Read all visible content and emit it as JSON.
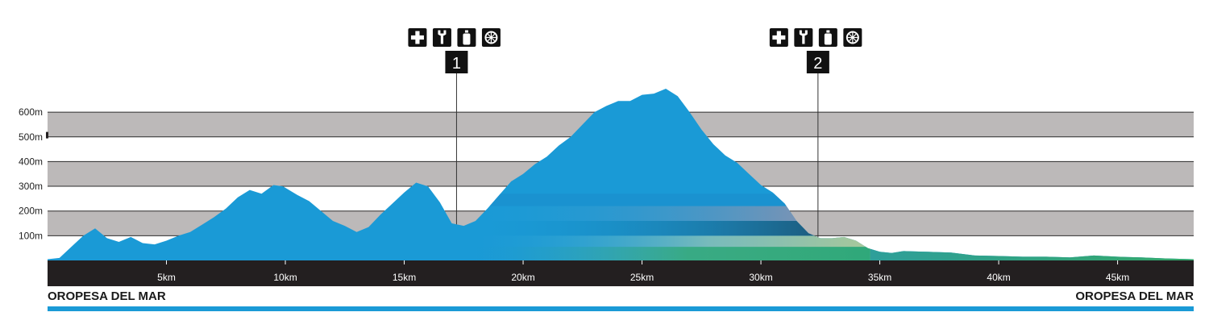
{
  "chart_data": {
    "type": "area",
    "title": "",
    "xlabel": "",
    "ylabel": "",
    "xlim": [
      0,
      48.2
    ],
    "ylim": [
      0,
      700
    ],
    "y_ticks": [
      "100m",
      "200m",
      "300m",
      "400m",
      "500m",
      "600m"
    ],
    "y_tick_values": [
      100,
      200,
      300,
      400,
      500,
      600
    ],
    "x_ticks": [
      "5km",
      "10km",
      "15km",
      "20km",
      "25km",
      "30km",
      "35km",
      "40km",
      "45km"
    ],
    "x_tick_values": [
      5,
      10,
      15,
      20,
      25,
      30,
      35,
      40,
      45
    ],
    "start_label": "OROPESA DEL MAR",
    "end_label": "OROPESA DEL MAR",
    "series": [
      {
        "x": [
          0,
          0.5,
          1.0,
          1.5,
          2.0,
          2.5,
          3.0,
          3.5,
          4.0,
          4.5,
          5.0,
          5.5,
          6.0,
          6.5,
          7.0,
          7.5,
          8.0,
          8.5,
          9.0,
          9.5,
          9.9,
          10.5,
          11.0,
          11.5,
          12.0,
          12.5,
          13.0,
          13.5,
          14.0,
          14.5,
          15.0,
          15.5,
          16.0,
          16.5,
          17.0,
          17.5,
          18.0,
          18.5,
          19.0,
          19.5,
          20.0,
          20.5,
          21.0,
          21.5,
          22.0,
          22.5,
          23.0,
          23.5,
          24.0,
          24.5,
          25.0,
          25.5,
          26.0,
          26.5,
          27.0,
          27.5,
          28.0,
          28.5,
          29.0,
          29.5,
          30.0,
          30.5,
          31.0,
          31.5,
          32.0,
          32.5,
          33.0,
          33.5,
          34.0,
          34.5,
          35.0,
          35.5,
          36.0,
          37.0,
          38.0,
          39.0,
          40.0,
          41.0,
          42.0,
          43.0,
          44.0,
          45.0,
          46.0,
          47.0,
          48.2
        ],
        "y": [
          5,
          10,
          55,
          100,
          130,
          90,
          75,
          95,
          70,
          65,
          80,
          100,
          115,
          145,
          175,
          210,
          255,
          285,
          270,
          305,
          300,
          265,
          240,
          200,
          160,
          140,
          115,
          135,
          185,
          230,
          275,
          315,
          300,
          235,
          150,
          140,
          160,
          210,
          265,
          320,
          350,
          390,
          420,
          465,
          500,
          550,
          600,
          625,
          645,
          645,
          670,
          675,
          695,
          665,
          600,
          530,
          470,
          425,
          395,
          350,
          305,
          275,
          230,
          160,
          110,
          90,
          90,
          95,
          80,
          50,
          35,
          30,
          38,
          35,
          32,
          20,
          18,
          15,
          15,
          12,
          20,
          15,
          12,
          8,
          5
        ]
      }
    ],
    "stations": [
      {
        "number": "1",
        "km": 17.2,
        "services": [
          "first-aid-icon",
          "wrench-icon",
          "water-bottle-icon",
          "orange-slice-icon"
        ]
      },
      {
        "number": "2",
        "km": 32.4,
        "services": [
          "first-aid-icon",
          "wrench-icon",
          "water-bottle-icon",
          "orange-slice-icon"
        ]
      }
    ],
    "grid": "alternating grey bands every 100 m",
    "colors": {
      "profile": "#1a9ad6",
      "profile_low": "#2fa87a",
      "band": "#bcb9b9",
      "band_line": "#2b2b2b",
      "axis_bar": "#231f20",
      "route_line": "#1a9ad6"
    }
  }
}
